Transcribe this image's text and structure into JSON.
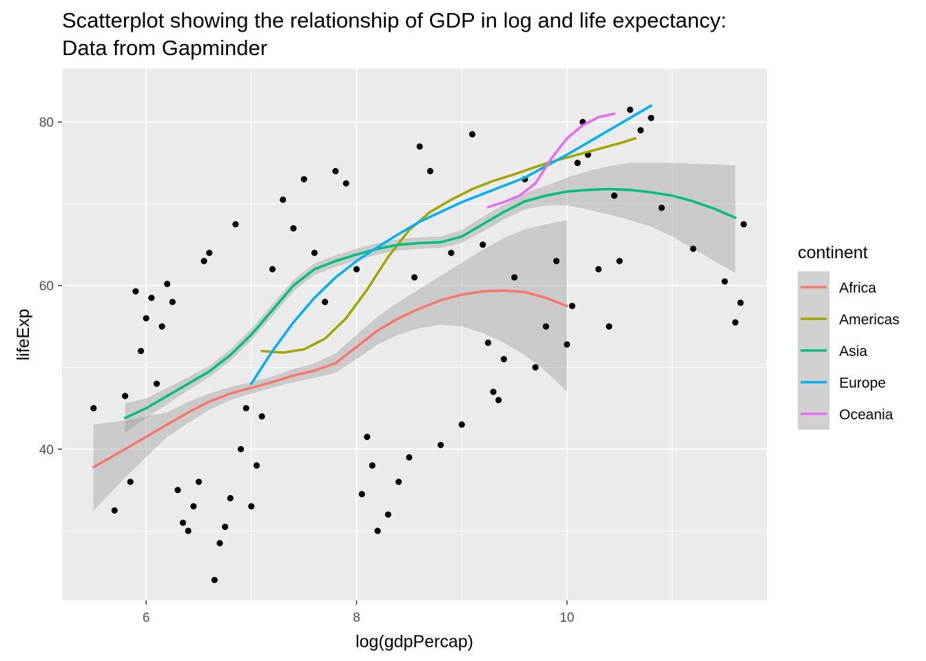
{
  "chart_data": {
    "type": "scatter",
    "title": "Scatterplot showing the relationship of GDP in log and life expectancy:",
    "subtitle": "Data from Gapminder",
    "xlabel": "log(gdpPercap)",
    "ylabel": "lifeExp",
    "xlim": [
      5.2,
      11.9
    ],
    "ylim": [
      21.5,
      86.5
    ],
    "x_ticks": [
      6,
      8,
      10
    ],
    "y_ticks": [
      40,
      60,
      80
    ],
    "x_tick_labels": [
      "6",
      "8",
      "10"
    ],
    "y_tick_labels": [
      "40",
      "60",
      "80"
    ],
    "grid": true,
    "panel_background": "#ebebeb",
    "point_color": "#000000",
    "ribbon_color": "#999999",
    "legend": {
      "title": "continent",
      "position": "right",
      "entries": [
        {
          "label": "Africa",
          "color": "#F8766D"
        },
        {
          "label": "Americas",
          "color": "#A3A500"
        },
        {
          "label": "Asia",
          "color": "#00BF7D"
        },
        {
          "label": "Europe",
          "color": "#00B0F6"
        },
        {
          "label": "Oceania",
          "color": "#E76BF3"
        }
      ]
    },
    "points": [
      [
        5.5,
        45
      ],
      [
        5.7,
        32.5
      ],
      [
        5.8,
        46.5
      ],
      [
        5.85,
        36
      ],
      [
        5.9,
        59.3
      ],
      [
        5.95,
        52
      ],
      [
        6.0,
        56
      ],
      [
        6.05,
        58.5
      ],
      [
        6.1,
        48
      ],
      [
        6.15,
        55
      ],
      [
        6.2,
        60.2
      ],
      [
        6.25,
        58
      ],
      [
        6.3,
        35
      ],
      [
        6.35,
        31
      ],
      [
        6.4,
        30
      ],
      [
        6.45,
        33
      ],
      [
        6.5,
        36
      ],
      [
        6.55,
        63
      ],
      [
        6.6,
        64
      ],
      [
        6.65,
        24
      ],
      [
        6.7,
        28.5
      ],
      [
        6.75,
        30.5
      ],
      [
        6.8,
        34
      ],
      [
        6.85,
        67.5
      ],
      [
        6.9,
        40
      ],
      [
        6.95,
        45
      ],
      [
        7.0,
        33
      ],
      [
        7.05,
        38
      ],
      [
        7.1,
        44
      ],
      [
        7.2,
        62
      ],
      [
        7.3,
        70.5
      ],
      [
        7.4,
        67
      ],
      [
        7.5,
        73
      ],
      [
        7.6,
        64
      ],
      [
        7.7,
        58
      ],
      [
        7.8,
        74
      ],
      [
        7.9,
        72.5
      ],
      [
        8.0,
        62
      ],
      [
        8.05,
        34.5
      ],
      [
        8.1,
        41.5
      ],
      [
        8.15,
        38
      ],
      [
        8.2,
        30
      ],
      [
        8.3,
        32
      ],
      [
        8.4,
        36
      ],
      [
        8.5,
        39
      ],
      [
        8.55,
        61
      ],
      [
        8.6,
        77
      ],
      [
        8.7,
        74
      ],
      [
        8.8,
        40.5
      ],
      [
        8.9,
        64
      ],
      [
        9.0,
        43
      ],
      [
        9.1,
        78.5
      ],
      [
        9.2,
        65
      ],
      [
        9.25,
        53
      ],
      [
        9.3,
        47
      ],
      [
        9.35,
        46
      ],
      [
        9.4,
        51
      ],
      [
        9.5,
        61
      ],
      [
        9.6,
        73
      ],
      [
        9.7,
        50
      ],
      [
        9.8,
        55
      ],
      [
        9.9,
        63
      ],
      [
        10.0,
        52.8
      ],
      [
        10.05,
        57.5
      ],
      [
        10.1,
        75
      ],
      [
        10.15,
        80
      ],
      [
        10.2,
        76
      ],
      [
        10.3,
        62
      ],
      [
        10.4,
        55
      ],
      [
        10.45,
        71
      ],
      [
        10.5,
        63
      ],
      [
        10.6,
        81.5
      ],
      [
        10.7,
        79
      ],
      [
        10.8,
        80.5
      ],
      [
        10.9,
        69.5
      ],
      [
        11.2,
        64.5
      ],
      [
        11.5,
        60.5
      ],
      [
        11.6,
        55.5
      ],
      [
        11.65,
        57.9
      ],
      [
        11.68,
        67.5
      ]
    ],
    "series": [
      {
        "name": "Africa",
        "color": "#F8766D",
        "x": [
          5.5,
          5.8,
          6.0,
          6.2,
          6.4,
          6.6,
          6.8,
          7.0,
          7.2,
          7.4,
          7.6,
          7.8,
          8.0,
          8.2,
          8.4,
          8.6,
          8.8,
          9.0,
          9.2,
          9.4,
          9.6,
          9.8,
          10.0
        ],
        "y": [
          37.8,
          40,
          41.5,
          43,
          44.5,
          45.8,
          46.8,
          47.5,
          48.2,
          49,
          49.6,
          50.5,
          52.5,
          54.5,
          56,
          57.2,
          58.2,
          58.9,
          59.3,
          59.4,
          59.2,
          58.5,
          57.5
        ],
        "lower": [
          32.5,
          36.5,
          39,
          41.5,
          43.2,
          44.8,
          46,
          46.8,
          47.5,
          48.2,
          48.7,
          49.3,
          51,
          52.8,
          54,
          54.8,
          55.2,
          55,
          54.2,
          53,
          51.5,
          49.5,
          47
        ],
        "upper": [
          43,
          43.5,
          44,
          44.5,
          45.8,
          46.8,
          47.6,
          48.2,
          48.9,
          49.8,
          50.5,
          51.7,
          54,
          56.2,
          58,
          59.6,
          61.2,
          62.8,
          64.4,
          65.8,
          66.9,
          67.5,
          68
        ]
      },
      {
        "name": "Americas",
        "color": "#A3A500",
        "x": [
          7.1,
          7.3,
          7.5,
          7.7,
          7.9,
          8.1,
          8.3,
          8.5,
          8.7,
          8.9,
          9.1,
          9.3,
          9.5,
          9.7,
          9.9,
          10.1,
          10.3,
          10.5,
          10.65
        ],
        "y": [
          52,
          51.8,
          52.2,
          53.5,
          56,
          59.5,
          63.5,
          66.8,
          69,
          70.5,
          71.8,
          72.8,
          73.6,
          74.5,
          75.3,
          76,
          76.7,
          77.4,
          78
        ]
      },
      {
        "name": "Asia",
        "color": "#00BF7D",
        "x": [
          5.8,
          6.0,
          6.2,
          6.4,
          6.6,
          6.8,
          7.0,
          7.2,
          7.4,
          7.6,
          7.8,
          8.0,
          8.2,
          8.4,
          8.6,
          8.8,
          9.0,
          9.2,
          9.4,
          9.6,
          9.8,
          10.0,
          10.2,
          10.4,
          10.6,
          10.8,
          11.0,
          11.2,
          11.4,
          11.6
        ],
        "y": [
          43.8,
          45,
          46.5,
          48,
          49.5,
          51.5,
          54,
          57,
          60,
          62,
          63,
          63.8,
          64.5,
          65,
          65.2,
          65.3,
          66,
          67.5,
          69,
          70.3,
          71,
          71.5,
          71.7,
          71.8,
          71.7,
          71.4,
          71,
          70.3,
          69.4,
          68.3
        ],
        "lower": [
          42,
          43.8,
          45.5,
          47.2,
          48.8,
          50.8,
          53.3,
          56.3,
          59.3,
          61.3,
          62.3,
          63.1,
          63.8,
          64.3,
          64.5,
          64.6,
          65.2,
          66.6,
          68.1,
          69.3,
          69.8,
          69.8,
          69.3,
          68.7,
          68,
          67.2,
          66,
          64.5,
          63,
          61.5
        ],
        "upper": [
          45.6,
          46.2,
          47.5,
          48.8,
          50.2,
          52.2,
          54.7,
          57.7,
          60.7,
          62.7,
          63.7,
          64.5,
          65.2,
          65.7,
          65.9,
          66,
          66.8,
          68.4,
          69.9,
          71.3,
          72.2,
          73.2,
          74,
          74.6,
          75,
          75,
          75,
          74.9,
          74.8,
          74.7
        ]
      },
      {
        "name": "Europe",
        "color": "#00B0F6",
        "x": [
          7.0,
          7.2,
          7.4,
          7.6,
          7.8,
          8.0,
          8.2,
          8.4,
          8.6,
          8.8,
          9.0,
          9.2,
          9.4,
          9.6,
          9.8,
          10.0,
          10.2,
          10.4,
          10.6,
          10.8
        ],
        "y": [
          48,
          52,
          55.5,
          58.5,
          61,
          63,
          64.7,
          66.3,
          67.8,
          69,
          70.2,
          71.2,
          72.2,
          73.2,
          74.6,
          76,
          77.5,
          79,
          80.5,
          82
        ]
      },
      {
        "name": "Oceania",
        "color": "#E76BF3",
        "x": [
          9.25,
          9.4,
          9.55,
          9.7,
          9.85,
          10.0,
          10.15,
          10.3,
          10.45
        ],
        "y": [
          69.6,
          70.2,
          71,
          72.5,
          75.5,
          78,
          79.6,
          80.6,
          81
        ]
      }
    ]
  }
}
